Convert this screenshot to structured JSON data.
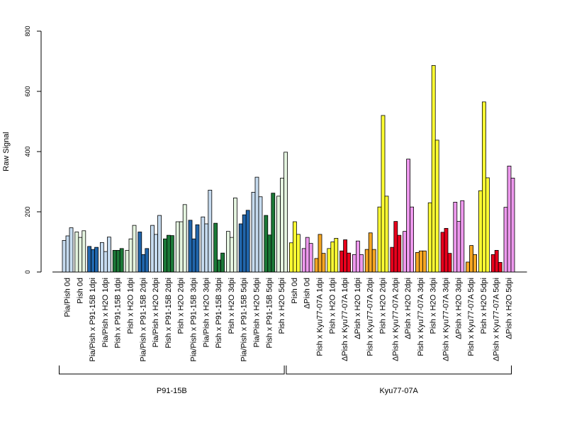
{
  "chart_data": {
    "type": "bar",
    "ylabel": "Raw Signal",
    "ylim": [
      0,
      800
    ],
    "yticks": [
      0,
      200,
      400,
      600,
      800
    ],
    "grid": false,
    "categories": [
      "Pia/Pish 0d",
      "Pish 0d",
      "Pia/Pish x P91-15B 1dpi",
      "Pia/Pish x H2O 1dpi",
      "Pish x P91-15B 1dpi",
      "Pish x H2O 1dpi",
      "Pia/Pish x P91-15B 2dpi",
      "Pia/Pish x H2O 2dpi",
      "Pish x P91-15B 2dpi",
      "Pish x H2O 2dpi",
      "Pia/Pish x P91-15B 3dpi",
      "Pia/Pish x H2O 3dpi",
      "Pish x P91-15B 3dpi",
      "Pish x H2O 3dpi",
      "Pia/Pish x P91-15B 5dpi",
      "Pia/Pish x H2O 5dpi",
      "Pish x P91-15B 5dpi",
      "Pish x H2O 5dpi",
      "Pish 0d",
      "ΔPish 0d",
      "Pish x Kyu77-07A 1dpi",
      "Pish x H2O 1dpi",
      "ΔPish x Kyu77-07A 1dpi",
      "ΔPish x H2O 1dpi",
      "Pish x Kyu77-07A 2dpi",
      "Pish x H2O 2dpi",
      "ΔPish x Kyu77-07A 2dpi",
      "ΔPish x H2O 2dpi",
      "Pish x Kyu77-07A 3dpi",
      "Pish x H2O 3dpi",
      "ΔPish x Kyu77-07A 3dpi",
      "ΔPish x H2O 3dpi",
      "Pish x Kyu77-07A 5dpi",
      "Pish x H2O 5dpi",
      "ΔPish x Kyu77-07A 5dpi",
      "ΔPish x H2O 5dpi"
    ],
    "colors": [
      "#c6dbef",
      "#e5f5e0",
      "#2166ac",
      "#c6dbef",
      "#1b7837",
      "#e5f5e0",
      "#2166ac",
      "#c6dbef",
      "#1b7837",
      "#e5f5e0",
      "#2166ac",
      "#c6dbef",
      "#1b7837",
      "#e5f5e0",
      "#2166ac",
      "#c6dbef",
      "#1b7837",
      "#e5f5e0",
      "#ffff33",
      "#ee99ee",
      "#f5a623",
      "#ffff33",
      "#e8001c",
      "#ee99ee",
      "#f5a623",
      "#ffff33",
      "#e8001c",
      "#ee99ee",
      "#f5a623",
      "#ffff33",
      "#e8001c",
      "#ee99ee",
      "#f5a623",
      "#ffff33",
      "#e8001c",
      "#ee99ee"
    ],
    "values": [
      [
        105,
        120,
        147
      ],
      [
        133,
        115,
        137
      ],
      [
        85,
        75,
        82
      ],
      [
        98,
        68,
        116
      ],
      [
        72,
        72,
        78
      ],
      [
        72,
        110,
        155
      ],
      [
        133,
        58,
        78
      ],
      [
        155,
        125,
        188
      ],
      [
        110,
        122,
        121
      ],
      [
        167,
        167,
        224
      ],
      [
        172,
        110,
        157
      ],
      [
        183,
        160,
        272
      ],
      [
        162,
        40,
        63
      ],
      [
        135,
        115,
        246
      ],
      [
        160,
        190,
        205
      ],
      [
        265,
        315,
        250
      ],
      [
        188,
        123,
        262
      ],
      [
        252,
        312,
        398
      ],
      [
        97,
        167,
        125
      ],
      [
        78,
        115,
        95
      ],
      [
        45,
        125,
        62
      ],
      [
        78,
        100,
        112
      ],
      [
        70,
        107,
        63
      ],
      [
        58,
        103,
        58
      ],
      [
        75,
        130,
        75
      ],
      [
        216,
        520,
        252
      ],
      [
        82,
        168,
        122
      ],
      [
        135,
        375,
        216
      ],
      [
        65,
        70,
        70
      ],
      [
        230,
        686,
        438
      ],
      [
        132,
        145,
        62
      ],
      [
        232,
        168,
        237
      ],
      [
        33,
        88,
        58
      ],
      [
        270,
        565,
        313
      ],
      [
        58,
        72,
        32
      ],
      [
        215,
        352,
        312
      ]
    ],
    "groups": [
      {
        "label": "P91-15B",
        "start": 0,
        "end": 17
      },
      {
        "label": "Kyu77-07A",
        "start": 18,
        "end": 35
      }
    ]
  }
}
